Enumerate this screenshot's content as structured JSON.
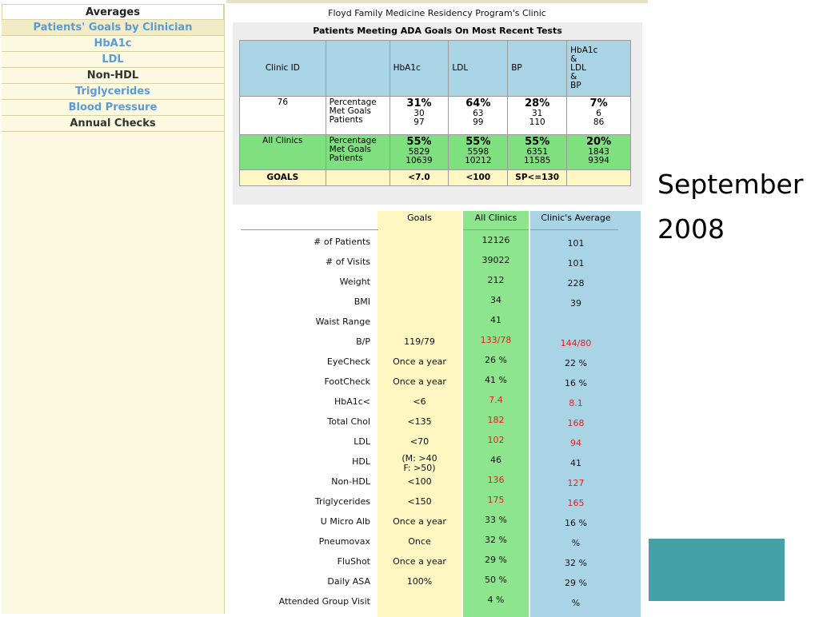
{
  "nav": {
    "items": [
      {
        "label": "Averages"
      },
      {
        "label": "Patients' Goals by Clinician"
      },
      {
        "label": "HbA1c"
      },
      {
        "label": "LDL"
      },
      {
        "label": "Non-HDL"
      },
      {
        "label": "Triglycerides"
      },
      {
        "label": "Blood Pressure"
      },
      {
        "label": "Annual Checks"
      }
    ]
  },
  "clinic_name": "Floyd Family Medicine Residency Program's Clinic",
  "ada": {
    "title": "Patients Meeting ADA Goals On Most Recent Tests",
    "headers": {
      "clinic_id": "Clinic ID",
      "blank": "",
      "hba1c": "HbA1c",
      "ldl": "LDL",
      "bp": "BP",
      "combo_line1": "HbA1c",
      "combo_line2": "&",
      "combo_line3": "LDL",
      "combo_line4": "&",
      "combo_line5": "BP"
    },
    "row_labels": {
      "l1": "Percentage",
      "l2": "Met Goals",
      "l3": "Patients"
    },
    "clinic_row": {
      "id": "76",
      "hba1c": {
        "pct": "31%",
        "met": "30",
        "patients": "97"
      },
      "ldl": {
        "pct": "64%",
        "met": "63",
        "patients": "99"
      },
      "bp": {
        "pct": "28%",
        "met": "31",
        "patients": "110"
      },
      "combo": {
        "pct": "7%",
        "met": "6",
        "patients": "86"
      }
    },
    "all_row": {
      "id": "All Clinics",
      "hba1c": {
        "pct": "55%",
        "met": "5829",
        "patients": "10639"
      },
      "ldl": {
        "pct": "55%",
        "met": "5598",
        "patients": "10212"
      },
      "bp": {
        "pct": "55%",
        "met": "6351",
        "patients": "11585"
      },
      "combo": {
        "pct": "20%",
        "met": "1843",
        "patients": "9394"
      }
    },
    "goals_row": {
      "label": "GOALS",
      "hba1c": "<7.0",
      "ldl": "<100",
      "bp": "SP<=130"
    }
  },
  "comparison": {
    "headers": {
      "goals": "Goals",
      "all": "All Clinics",
      "avg": "Clinic's Average"
    },
    "rows": [
      {
        "label": "# of Patients",
        "goal": "",
        "all": "12126",
        "avg": "101"
      },
      {
        "label": "# of Visits",
        "goal": "",
        "all": "39022",
        "avg": "101"
      },
      {
        "label": "Weight",
        "goal": "",
        "all": "212",
        "avg": "228"
      },
      {
        "label": "BMI",
        "goal": "",
        "all": "34",
        "avg": "39"
      },
      {
        "label": "Waist Range",
        "goal": "",
        "all": "41",
        "avg": ""
      },
      {
        "label": "B/P",
        "goal": "119/79",
        "all": "133/78",
        "avg": "144/80"
      },
      {
        "label": "EyeCheck",
        "goal": "Once a year",
        "all": "26 %",
        "avg": "22 %"
      },
      {
        "label": "FootCheck",
        "goal": "Once a year",
        "all": "41 %",
        "avg": "16 %"
      },
      {
        "label": "HbA1c<",
        "goal": "<6",
        "all": "7.4",
        "avg": "8.1"
      },
      {
        "label": "Total Chol",
        "goal": "<135",
        "all": "182",
        "avg": "168"
      },
      {
        "label": "LDL",
        "goal": "<70",
        "all": "102",
        "avg": "94"
      },
      {
        "label": "HDL",
        "goal": "(M: >40",
        "all": "46",
        "avg": "41"
      },
      {
        "label": "Non-HDL",
        "goal": "<100",
        "all": "136",
        "avg": "127"
      },
      {
        "label": "Triglycerides",
        "goal": "<150",
        "all": "175",
        "avg": "165"
      },
      {
        "label": "U Micro Alb",
        "goal": "Once a year",
        "all": "33 %",
        "avg": "16 %"
      },
      {
        "label": "Pneumovax",
        "goal": "Once",
        "all": "32 %",
        "avg": "%"
      },
      {
        "label": "FluShot",
        "goal": "Once a year",
        "all": "29 %",
        "avg": "32 %"
      },
      {
        "label": "Daily ASA",
        "goal": "100%",
        "all": "50 %",
        "avg": "29 %"
      },
      {
        "label": "Attended Group Visit",
        "goal": "",
        "all": "4 %",
        "avg": "%"
      }
    ],
    "hdl_goal_line2": "F: >50)"
  },
  "slide": {
    "date_line1": "September",
    "date_line2": "2008"
  },
  "colors": {
    "goals_col": "#fff7c2",
    "all_clinics_col": "#8de68d",
    "avg_col": "#a9d4e6",
    "alert_red": "#e02020",
    "teal_block": "#45a0a8"
  }
}
